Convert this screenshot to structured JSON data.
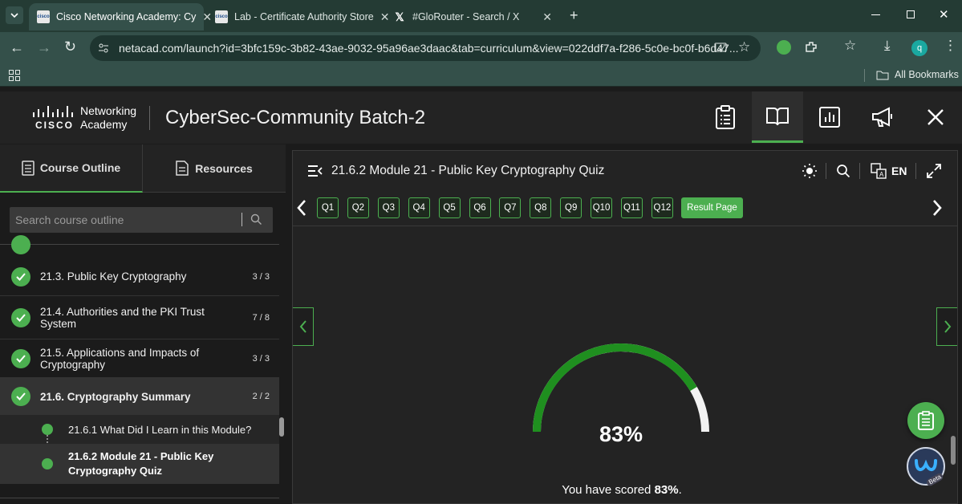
{
  "browser": {
    "tabs": [
      {
        "title": "Cisco Networking Academy: Cy",
        "favicon": "cisco-logo"
      },
      {
        "title": "Lab - Certificate Authority Store",
        "favicon": "cisco-logo"
      },
      {
        "title": "#GloRouter - Search / X",
        "favicon": "x-logo"
      }
    ],
    "url": "netacad.com/launch?id=3bfc159c-3b82-43ae-9032-95a96ae3daac&tab=curriculum&view=022ddf7a-f286-5c0e-bc0f-b6d47...",
    "profile_initial": "q",
    "bookmarks_label": "All Bookmarks",
    "favicon_text": "cisco"
  },
  "app": {
    "logo_line1": "Networking",
    "logo_line2": "Academy",
    "logo_brand": "CISCO",
    "title": "CyberSec-Community Batch-2"
  },
  "sidebar": {
    "tabs": [
      "Course Outline",
      "Resources"
    ],
    "search_placeholder": "Search course outline",
    "items": [
      {
        "label": "21.3. Public Key Cryptography",
        "count": "3 / 3"
      },
      {
        "label": "21.4. Authorities and the PKI Trust System",
        "count": "7 / 8"
      },
      {
        "label": "21.5. Applications and Impacts of Cryptography",
        "count": "3 / 3"
      },
      {
        "label": "21.6. Cryptography Summary",
        "count": "2 / 2"
      }
    ],
    "subitems": [
      {
        "label": "21.6.1 What Did I Learn in this Module?"
      },
      {
        "label": "21.6.2 Module 21 - Public Key Cryptography Quiz"
      }
    ]
  },
  "main": {
    "title": "21.6.2 Module 21 - Public Key Cryptography Quiz",
    "lang": "EN",
    "questions": [
      "Q1",
      "Q2",
      "Q3",
      "Q4",
      "Q5",
      "Q6",
      "Q7",
      "Q8",
      "Q9",
      "Q10",
      "Q11",
      "Q12"
    ],
    "result_label": "Result Page",
    "score_percent": "83%",
    "score_value": 0.83,
    "score_text_prefix": "You have scored ",
    "score_text_value": "83%",
    "score_text_suffix": ".",
    "beta_label": "Beta"
  },
  "colors": {
    "accent_green": "#4caf50",
    "gauge_green": "#1f8f1f",
    "chrome_dark": "#243b34"
  }
}
